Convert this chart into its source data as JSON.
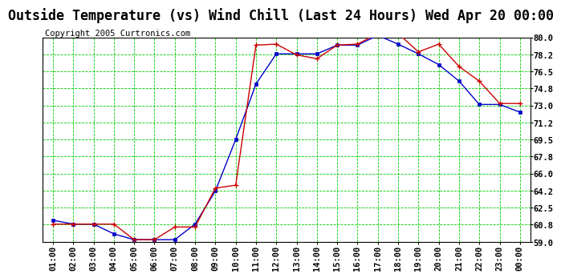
{
  "title": "Outside Temperature (vs) Wind Chill (Last 24 Hours) Wed Apr 20 00:00",
  "copyright": "Copyright 2005 Curtronics.com",
  "x_labels": [
    "01:00",
    "02:00",
    "03:00",
    "04:00",
    "05:00",
    "06:00",
    "07:00",
    "08:00",
    "09:00",
    "10:00",
    "11:00",
    "12:00",
    "13:00",
    "14:00",
    "15:00",
    "16:00",
    "17:00",
    "18:00",
    "19:00",
    "20:00",
    "21:00",
    "22:00",
    "23:00",
    "00:00"
  ],
  "outside_temp": [
    61.2,
    60.8,
    60.8,
    59.8,
    59.2,
    59.2,
    59.2,
    60.8,
    64.2,
    69.5,
    75.2,
    78.3,
    78.3,
    78.3,
    79.2,
    79.2,
    80.2,
    79.3,
    78.3,
    77.2,
    75.5,
    73.1,
    73.1,
    72.3
  ],
  "wind_chill": [
    60.8,
    60.8,
    60.8,
    60.8,
    59.2,
    59.2,
    60.5,
    60.5,
    64.5,
    64.8,
    79.2,
    79.3,
    78.2,
    77.8,
    79.2,
    79.3,
    80.4,
    80.4,
    78.5,
    79.3,
    77.0,
    75.5,
    73.2,
    73.2
  ],
  "temp_color": "#0000cc",
  "wind_chill_color": "#cc0000",
  "background_color": "#ffffff",
  "plot_bg_color": "#ffffff",
  "grid_color": "#00cc00",
  "ylim_min": 59.0,
  "ylim_max": 80.0,
  "yticks": [
    59.0,
    60.8,
    62.5,
    64.2,
    66.0,
    67.8,
    69.5,
    71.2,
    73.0,
    74.8,
    76.5,
    78.2,
    80.0
  ],
  "ytick_labels": [
    "59.0",
    "60.8",
    "62.5",
    "64.2",
    "66.0",
    "67.8",
    "69.5",
    "71.2",
    "73.0",
    "74.8",
    "76.5",
    "78.2",
    "80.0"
  ],
  "title_fontsize": 12,
  "copyright_fontsize": 7.5,
  "tick_fontsize": 7.5,
  "marker_size": 3
}
